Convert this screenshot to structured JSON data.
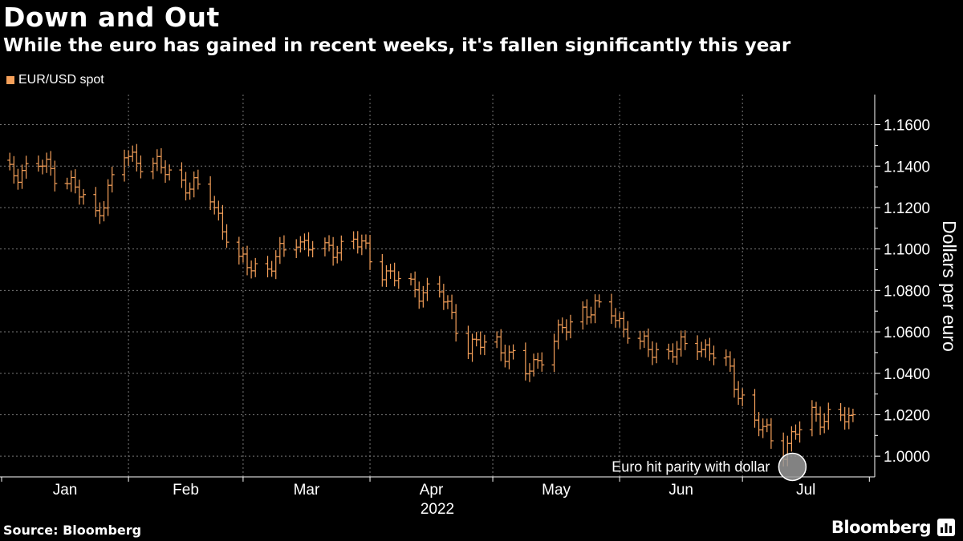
{
  "header": {
    "title": "Down and Out",
    "subtitle": "While the euro has gained in recent weeks, it's fallen significantly this year"
  },
  "legend": {
    "label": "EUR/USD spot",
    "color": "#f5a05a"
  },
  "footer": {
    "source": "Source: Bloomberg",
    "brand": "Bloomberg"
  },
  "chart_data": {
    "type": "line",
    "subtype": "ohlc-bars",
    "title": "Down and Out",
    "subtitle": "While the euro has gained in recent weeks, it's fallen significantly this year",
    "xlabel": "2022",
    "ylabel": "Dollars per euro",
    "ylim": [
      0.99,
      1.17
    ],
    "yticks": [
      1.16,
      1.14,
      1.12,
      1.1,
      1.08,
      1.06,
      1.04,
      1.02,
      1.0
    ],
    "ytick_labels": [
      "1.1600",
      "1.1400",
      "1.1200",
      "1.1000",
      "1.0800",
      "1.0600",
      "1.0400",
      "1.0200",
      "1.0000"
    ],
    "months": [
      "Jan",
      "Feb",
      "Mar",
      "Apr",
      "May",
      "Jun",
      "Jul"
    ],
    "year_label": "2022",
    "grid": true,
    "legend_position": "top-left",
    "color": "#f5a05a",
    "annotation": {
      "text": "Euro hit parity with dollar",
      "date": "2022-07-13",
      "value": 0.9995
    },
    "series": [
      {
        "name": "EUR/USD spot",
        "weekly_levels": [
          {
            "week": "2022-01-03",
            "value": 1.136
          },
          {
            "week": "2022-01-10",
            "value": 1.141
          },
          {
            "week": "2022-01-17",
            "value": 1.134
          },
          {
            "week": "2022-01-24",
            "value": 1.116
          },
          {
            "week": "2022-01-31",
            "value": 1.145
          },
          {
            "week": "2022-02-07",
            "value": 1.141
          },
          {
            "week": "2022-02-14",
            "value": 1.133
          },
          {
            "week": "2022-02-21",
            "value": 1.125
          },
          {
            "week": "2022-02-28",
            "value": 1.093
          },
          {
            "week": "2022-03-07",
            "value": 1.091
          },
          {
            "week": "2022-03-14",
            "value": 1.105
          },
          {
            "week": "2022-03-21",
            "value": 1.098
          },
          {
            "week": "2022-03-28",
            "value": 1.105
          },
          {
            "week": "2022-04-04",
            "value": 1.09
          },
          {
            "week": "2022-04-11",
            "value": 1.081
          },
          {
            "week": "2022-04-18",
            "value": 1.079
          },
          {
            "week": "2022-04-25",
            "value": 1.053
          },
          {
            "week": "2022-05-02",
            "value": 1.055
          },
          {
            "week": "2022-05-09",
            "value": 1.04
          },
          {
            "week": "2022-05-16",
            "value": 1.056
          },
          {
            "week": "2022-05-23",
            "value": 1.071
          },
          {
            "week": "2022-05-30",
            "value": 1.07
          },
          {
            "week": "2022-06-06",
            "value": 1.053
          },
          {
            "week": "2022-06-13",
            "value": 1.05
          },
          {
            "week": "2022-06-20",
            "value": 1.055
          },
          {
            "week": "2022-06-27",
            "value": 1.044
          },
          {
            "week": "2022-07-04",
            "value": 1.016
          },
          {
            "week": "2022-07-11",
            "value": 1.004
          },
          {
            "week": "2022-07-18",
            "value": 1.02
          },
          {
            "week": "2022-07-25",
            "value": 1.018
          }
        ]
      }
    ]
  }
}
